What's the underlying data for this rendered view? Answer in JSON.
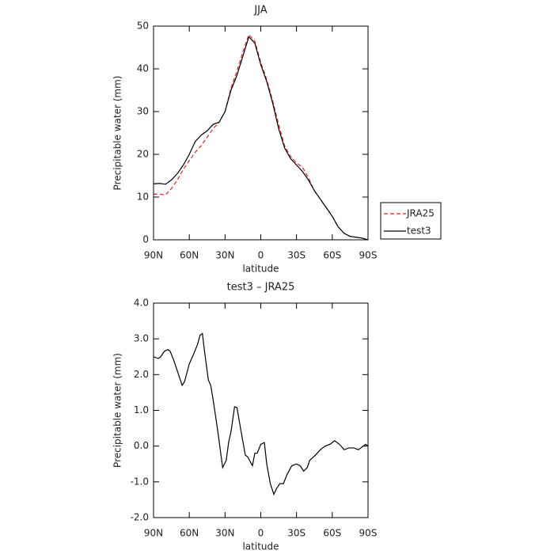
{
  "chart_data": [
    {
      "type": "line",
      "title": "JJA",
      "xlabel": "latitude",
      "ylabel": "Precipitable water (mm)",
      "x": [
        90,
        85,
        80,
        75,
        70,
        65,
        60,
        55,
        50,
        45,
        40,
        35,
        30,
        25,
        20,
        15,
        10,
        5,
        0,
        -5,
        -10,
        -15,
        -20,
        -25,
        -30,
        -35,
        -40,
        -45,
        -50,
        -55,
        -60,
        -65,
        -70,
        -75,
        -80,
        -85,
        -90
      ],
      "series": [
        {
          "name": "JRA25",
          "color": "#e8251f",
          "dash": true,
          "values": [
            10.7,
            10.7,
            10.5,
            12,
            14,
            16.5,
            18.5,
            20.5,
            22,
            24,
            26,
            27.5,
            30,
            35.5,
            39.5,
            44,
            48,
            46.5,
            41.5,
            37.5,
            32.5,
            27,
            22,
            19.5,
            18,
            17,
            14.5,
            11.5,
            9.5,
            7.5,
            5.5,
            3,
            1.5,
            0.8,
            0.6,
            0.4,
            0
          ]
        },
        {
          "name": "test3",
          "color": "#000000",
          "dash": false,
          "values": [
            13.1,
            13.2,
            13,
            14,
            15.5,
            17.5,
            20,
            23,
            24.5,
            25.5,
            27,
            27.5,
            30,
            35,
            38.5,
            43,
            47.5,
            46,
            41,
            37,
            32,
            26,
            21.5,
            19,
            17.5,
            16,
            14,
            11.5,
            9.5,
            7.5,
            5.5,
            3,
            1.5,
            0.8,
            0.6,
            0.4,
            0
          ]
        }
      ],
      "xlim": [
        90,
        -90
      ],
      "xticks": [
        {
          "value": 90,
          "label": "90N"
        },
        {
          "value": 60,
          "label": "60N"
        },
        {
          "value": 30,
          "label": "30N"
        },
        0,
        {
          "value": -30,
          "label": "30S"
        },
        {
          "value": -60,
          "label": "60S"
        },
        {
          "value": -90,
          "label": "90S"
        }
      ],
      "ylim": [
        0,
        50
      ],
      "yticks": [
        0,
        10,
        20,
        30,
        40,
        50
      ],
      "grid": false,
      "legend": "right"
    },
    {
      "type": "line",
      "title": "test3 – JRA25",
      "xlabel": "latitude",
      "ylabel": "Precipitable water (mm)",
      "x": [
        90,
        86,
        84,
        81,
        78,
        76,
        73,
        70,
        66,
        64,
        60,
        56,
        53,
        51,
        49,
        47,
        44,
        42,
        40,
        36,
        32,
        29,
        27,
        25,
        22,
        20,
        17,
        13,
        11,
        7,
        5,
        3,
        0,
        -3,
        -5,
        -8,
        -11,
        -13,
        -16,
        -19,
        -22,
        -26,
        -30,
        -33,
        -36,
        -39,
        -41,
        -46,
        -50,
        -54,
        -58,
        -62,
        -66,
        -70,
        -74,
        -78,
        -82,
        -86,
        -88,
        -90
      ],
      "values": [
        2.5,
        2.45,
        2.5,
        2.65,
        2.7,
        2.65,
        2.4,
        2.1,
        1.7,
        1.8,
        2.3,
        2.6,
        2.85,
        3.1,
        3.15,
        2.6,
        1.85,
        1.7,
        1.3,
        0.4,
        -0.6,
        -0.4,
        0.1,
        0.4,
        1.1,
        1.08,
        0.5,
        -0.25,
        -0.3,
        -0.55,
        -0.2,
        -0.2,
        0.05,
        0.1,
        -0.5,
        -1.05,
        -1.35,
        -1.2,
        -1.05,
        -1.05,
        -0.8,
        -0.55,
        -0.5,
        -0.55,
        -0.7,
        -0.6,
        -0.4,
        -0.25,
        -0.1,
        0,
        0.05,
        0.15,
        0.05,
        -0.1,
        -0.05,
        -0.05,
        -0.1,
        0,
        0.05,
        0
      ],
      "color": "#000000",
      "xlim": [
        90,
        -90
      ],
      "xticks": [
        {
          "value": 90,
          "label": "90N"
        },
        {
          "value": 60,
          "label": "60N"
        },
        {
          "value": 30,
          "label": "30N"
        },
        0,
        {
          "value": -30,
          "label": "30S"
        },
        {
          "value": -60,
          "label": "60S"
        },
        {
          "value": -90,
          "label": "90S"
        }
      ],
      "ylim": [
        -2,
        4
      ],
      "yticks": [
        {
          "value": -2,
          "label": "-2.0"
        },
        {
          "value": -1,
          "label": "-1.0"
        },
        {
          "value": 0,
          "label": "0.0"
        },
        {
          "value": 1,
          "label": "1.0"
        },
        {
          "value": 2,
          "label": "2.0"
        },
        {
          "value": 3,
          "label": "3.0"
        },
        {
          "value": 4,
          "label": "4.0"
        }
      ],
      "grid": false
    }
  ]
}
